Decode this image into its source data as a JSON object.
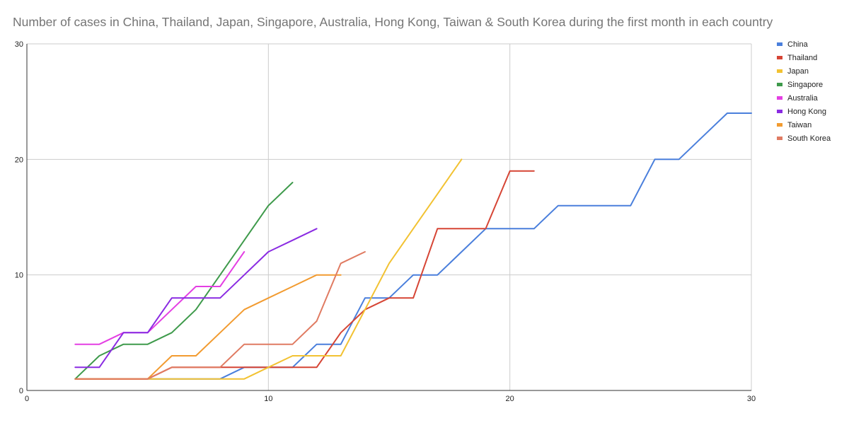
{
  "chart_data": {
    "type": "line",
    "title": "Number of cases in China, Thailand, Japan, Singapore, Australia, Hong Kong, Taiwan & South Korea during the first month in each country",
    "xlabel": "",
    "ylabel": "",
    "xlim": [
      0,
      30
    ],
    "ylim": [
      0,
      30
    ],
    "xticks": [
      0,
      10,
      20,
      30
    ],
    "yticks": [
      0,
      10,
      20,
      30
    ],
    "grid": true,
    "legend_position": "right",
    "series": [
      {
        "name": "China",
        "color": "#4a7fdc",
        "points": [
          [
            2,
            1
          ],
          [
            3,
            1
          ],
          [
            4,
            1
          ],
          [
            5,
            1
          ],
          [
            6,
            1
          ],
          [
            7,
            1
          ],
          [
            8,
            1
          ],
          [
            9,
            2
          ],
          [
            10,
            2
          ],
          [
            11,
            2
          ],
          [
            12,
            4
          ],
          [
            13,
            4
          ],
          [
            14,
            8
          ],
          [
            15,
            8
          ],
          [
            16,
            10
          ],
          [
            17,
            10
          ],
          [
            18,
            12
          ],
          [
            19,
            14
          ],
          [
            20,
            14
          ],
          [
            21,
            14
          ],
          [
            22,
            16
          ],
          [
            23,
            16
          ],
          [
            24,
            16
          ],
          [
            25,
            16
          ],
          [
            26,
            20
          ],
          [
            27,
            20
          ],
          [
            28,
            22
          ],
          [
            29,
            24
          ],
          [
            30,
            24
          ]
        ]
      },
      {
        "name": "Thailand",
        "color": "#d64535",
        "points": [
          [
            2,
            1
          ],
          [
            3,
            1
          ],
          [
            4,
            1
          ],
          [
            5,
            1
          ],
          [
            6,
            2
          ],
          [
            7,
            2
          ],
          [
            8,
            2
          ],
          [
            9,
            2
          ],
          [
            10,
            2
          ],
          [
            11,
            2
          ],
          [
            12,
            2
          ],
          [
            13,
            5
          ],
          [
            14,
            7
          ],
          [
            15,
            8
          ],
          [
            16,
            8
          ],
          [
            17,
            14
          ],
          [
            18,
            14
          ],
          [
            19,
            14
          ],
          [
            20,
            19
          ],
          [
            21,
            19
          ]
        ]
      },
      {
        "name": "Japan",
        "color": "#f2c232",
        "points": [
          [
            2,
            1
          ],
          [
            3,
            1
          ],
          [
            4,
            1
          ],
          [
            5,
            1
          ],
          [
            6,
            1
          ],
          [
            7,
            1
          ],
          [
            8,
            1
          ],
          [
            9,
            1
          ],
          [
            10,
            2
          ],
          [
            11,
            3
          ],
          [
            12,
            3
          ],
          [
            13,
            3
          ],
          [
            14,
            7
          ],
          [
            15,
            11
          ],
          [
            16,
            14
          ],
          [
            17,
            17
          ],
          [
            18,
            20
          ]
        ]
      },
      {
        "name": "Singapore",
        "color": "#3e9a4b",
        "points": [
          [
            2,
            1
          ],
          [
            3,
            3
          ],
          [
            4,
            4
          ],
          [
            5,
            4
          ],
          [
            6,
            5
          ],
          [
            7,
            7
          ],
          [
            8,
            10
          ],
          [
            9,
            13
          ],
          [
            10,
            16
          ],
          [
            11,
            18
          ]
        ]
      },
      {
        "name": "Australia",
        "color": "#e43fe3",
        "points": [
          [
            2,
            4
          ],
          [
            3,
            4
          ],
          [
            4,
            5
          ],
          [
            5,
            5
          ],
          [
            6,
            7
          ],
          [
            7,
            9
          ],
          [
            8,
            9
          ],
          [
            9,
            12
          ]
        ]
      },
      {
        "name": "Hong Kong",
        "color": "#8a2be2",
        "points": [
          [
            2,
            2
          ],
          [
            3,
            2
          ],
          [
            4,
            5
          ],
          [
            5,
            5
          ],
          [
            6,
            8
          ],
          [
            7,
            8
          ],
          [
            8,
            8
          ],
          [
            9,
            10
          ],
          [
            10,
            12
          ],
          [
            11,
            13
          ],
          [
            12,
            14
          ]
        ]
      },
      {
        "name": "Taiwan",
        "color": "#f29b30",
        "points": [
          [
            2,
            1
          ],
          [
            3,
            1
          ],
          [
            4,
            1
          ],
          [
            5,
            1
          ],
          [
            6,
            3
          ],
          [
            7,
            3
          ],
          [
            8,
            5
          ],
          [
            9,
            7
          ],
          [
            10,
            8
          ],
          [
            11,
            9
          ],
          [
            12,
            10
          ],
          [
            13,
            10
          ]
        ]
      },
      {
        "name": "South Korea",
        "color": "#e07b62",
        "points": [
          [
            2,
            1
          ],
          [
            3,
            1
          ],
          [
            4,
            1
          ],
          [
            5,
            1
          ],
          [
            6,
            2
          ],
          [
            7,
            2
          ],
          [
            8,
            2
          ],
          [
            9,
            4
          ],
          [
            10,
            4
          ],
          [
            11,
            4
          ],
          [
            12,
            6
          ],
          [
            13,
            11
          ],
          [
            14,
            12
          ]
        ]
      }
    ]
  }
}
